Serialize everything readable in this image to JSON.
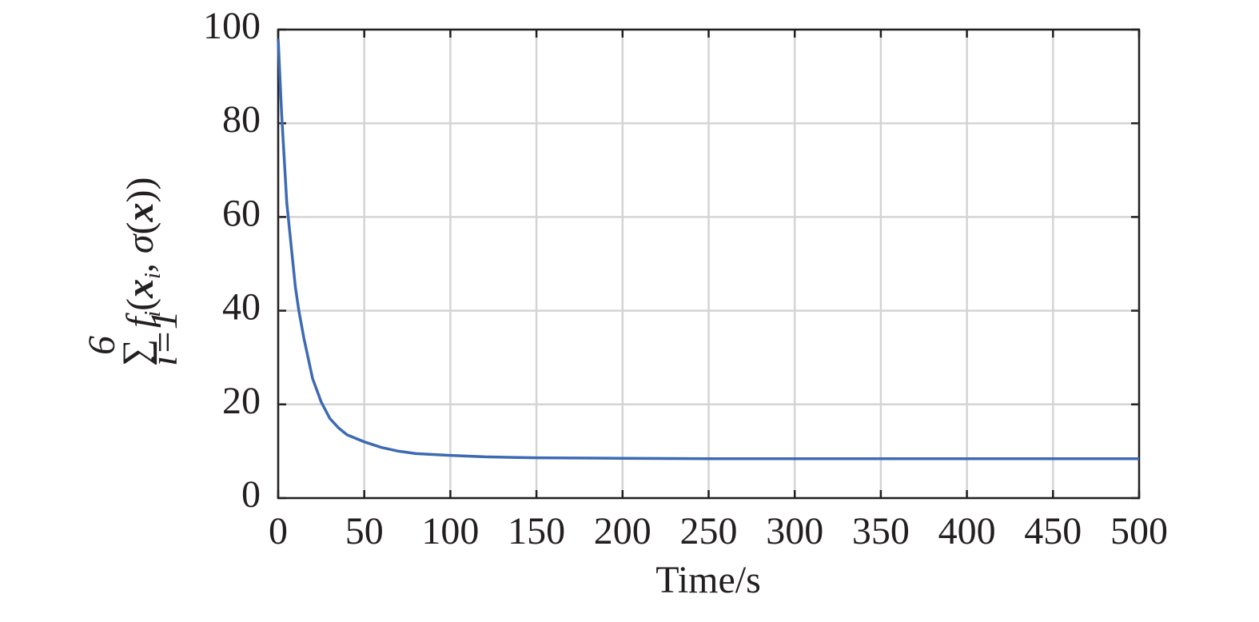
{
  "chart_data": {
    "type": "line",
    "xlabel": "Time/s",
    "ylabel": [
      "∑",
      "6",
      "i=1",
      "f",
      "i",
      "(",
      "x",
      "i",
      ", ",
      "σ",
      "(",
      "x",
      "))"
    ],
    "x": [
      0,
      2,
      5,
      10,
      12,
      15,
      20,
      25,
      30,
      35,
      40,
      50,
      60,
      70,
      80,
      100,
      120,
      150,
      200,
      250,
      300,
      400,
      500
    ],
    "series": [
      {
        "color": "#3d6ab4",
        "values": [
          98,
          82,
          63,
          45,
          40,
          34,
          25.5,
          20.5,
          17,
          15,
          13.5,
          12,
          10.8,
          10,
          9.5,
          9.1,
          8.8,
          8.6,
          8.5,
          8.4,
          8.4,
          8.4,
          8.4
        ]
      }
    ],
    "xlim": [
      0,
      500
    ],
    "xticks": [
      0,
      50,
      100,
      150,
      200,
      250,
      300,
      350,
      400,
      450,
      500
    ],
    "ylim": [
      0,
      100
    ],
    "yticks": [
      0,
      20,
      40,
      60,
      80,
      100
    ],
    "grid": true
  }
}
